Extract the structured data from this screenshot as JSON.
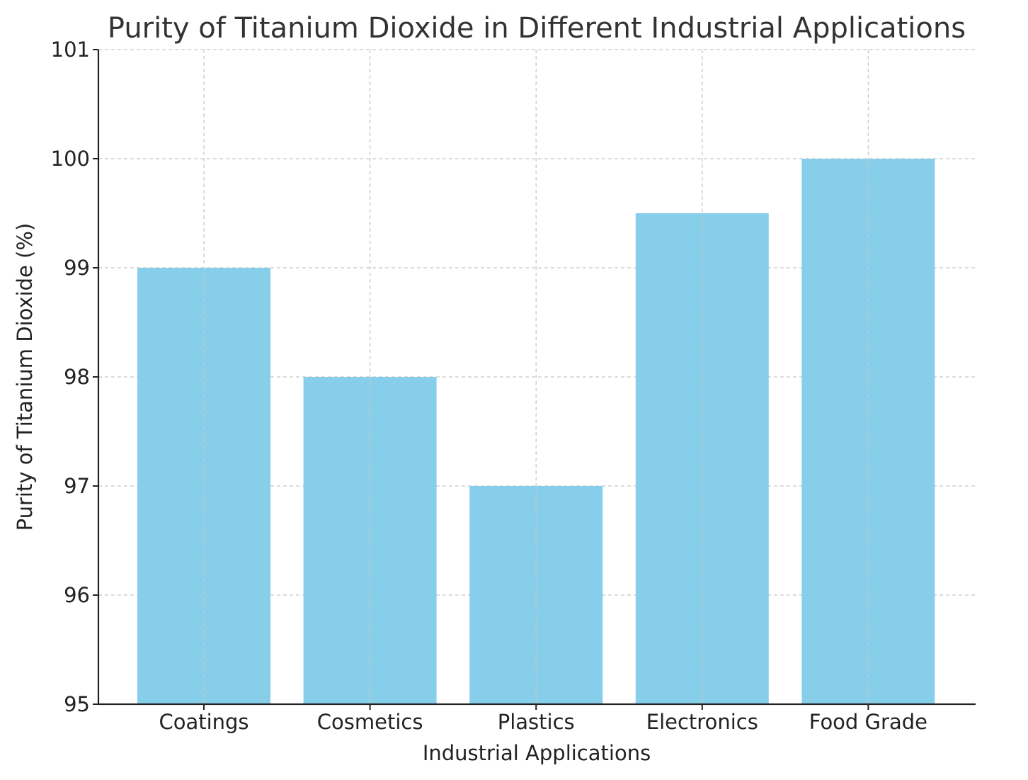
{
  "chart_data": {
    "type": "bar",
    "title": "Purity of Titanium Dioxide in Different Industrial Applications",
    "xlabel": "Industrial Applications",
    "ylabel": "Purity of Titanium Dioxide (%)",
    "categories": [
      "Coatings",
      "Cosmetics",
      "Plastics",
      "Electronics",
      "Food Grade"
    ],
    "values": [
      99,
      98,
      97,
      99.5,
      100
    ],
    "ylim": [
      95,
      101
    ],
    "yticks": [
      95,
      96,
      97,
      98,
      99,
      100,
      101
    ],
    "grid": true,
    "bar_color": "#87CEEB"
  }
}
